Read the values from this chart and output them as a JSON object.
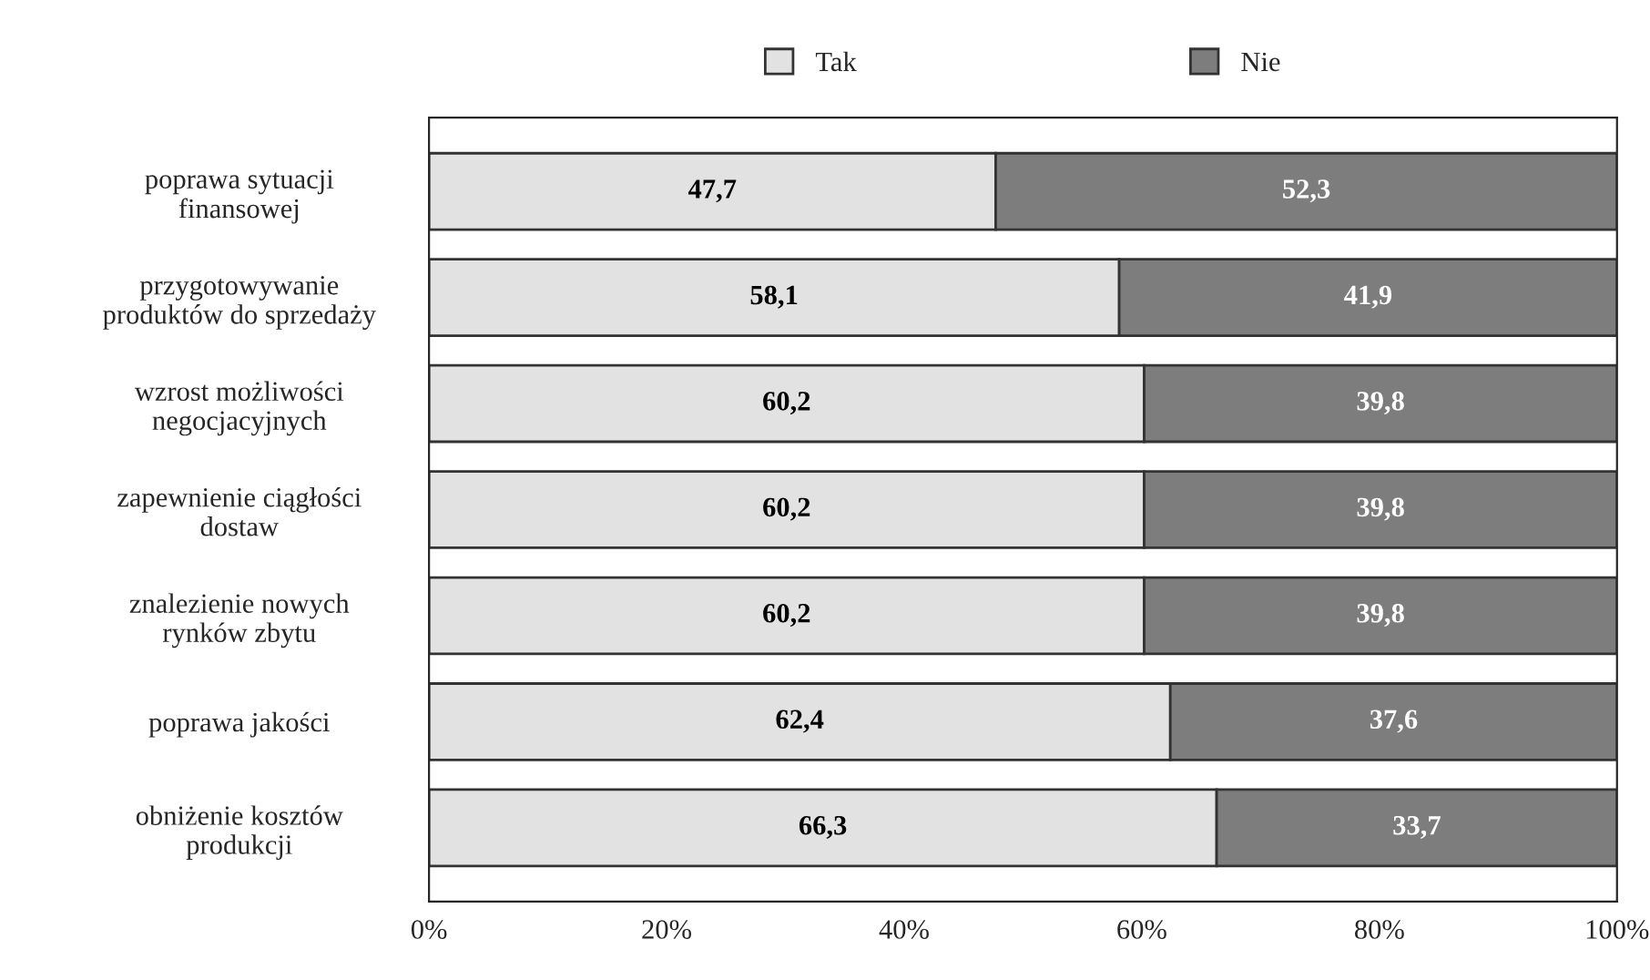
{
  "chart_data": {
    "type": "bar",
    "orientation": "horizontal",
    "stacked": true,
    "categories": [
      "poprawa sytuacji\nfinansowej",
      "przygotowywanie\nproduktów do sprzedaży",
      "wzrost możliwości\nnegocjacyjnych",
      "zapewnienie ciągłości\ndostaw",
      "znalezienie nowych\nrynków zbytu",
      "poprawa jakości",
      "obniżenie kosztów\nprodukcji"
    ],
    "series": [
      {
        "name": "Tak",
        "color": "#e2e2e2",
        "values": [
          47.7,
          58.1,
          60.2,
          60.2,
          60.2,
          62.4,
          66.3
        ],
        "value_labels": [
          "47,7",
          "58,1",
          "60,2",
          "60,2",
          "60,2",
          "62,4",
          "66,3"
        ]
      },
      {
        "name": "Nie",
        "color": "#7d7d7d",
        "values": [
          52.3,
          41.9,
          39.8,
          39.8,
          39.8,
          37.6,
          33.7
        ],
        "value_labels": [
          "52,3",
          "41,9",
          "39,8",
          "39,8",
          "39,8",
          "37,6",
          "33,7"
        ]
      }
    ],
    "xlim": [
      0,
      100
    ],
    "xticks": [
      {
        "value": 0,
        "label": "0%"
      },
      {
        "value": 20,
        "label": "20%"
      },
      {
        "value": 40,
        "label": "40%"
      },
      {
        "value": 60,
        "label": "60%"
      },
      {
        "value": 80,
        "label": "80%"
      },
      {
        "value": 100,
        "label": "100%"
      }
    ],
    "legend": "top",
    "grid": false
  }
}
